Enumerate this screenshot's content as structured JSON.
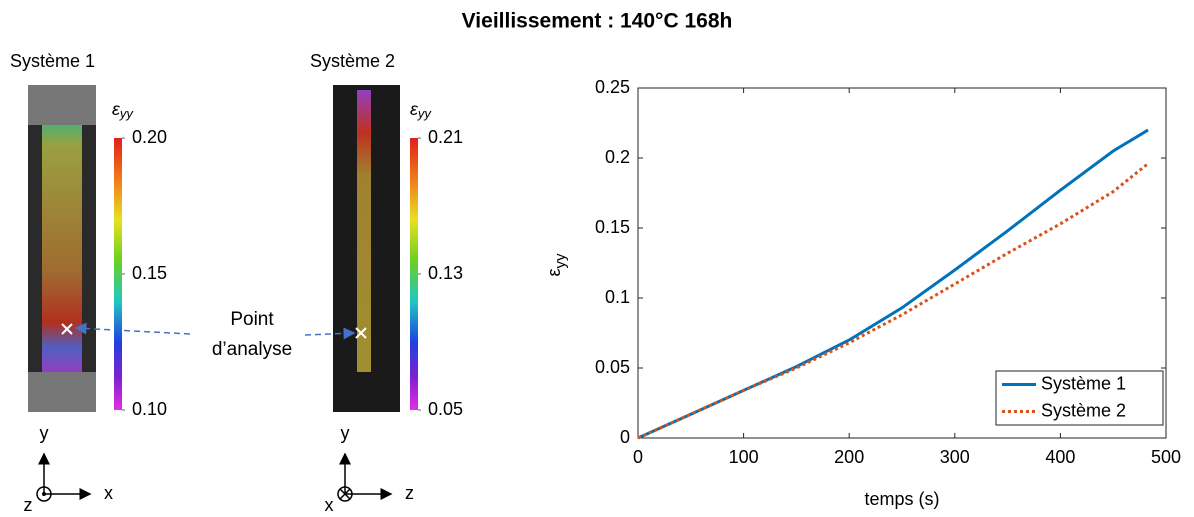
{
  "title": "Vieillissement : 140°C 168h",
  "maps": [
    {
      "label": "Système 1",
      "colorbar_label": {
        "symbol": "ε",
        "subscript": "yy"
      },
      "clim": [
        0.1,
        0.2
      ],
      "colorbar_ticks": [
        {
          "value": 0.2,
          "label": "0.20"
        },
        0.15,
        {
          "value": 0.1,
          "label": "0.10"
        }
      ],
      "axes": {
        "vertical": "y",
        "horizontal": "x",
        "normal": "z"
      }
    },
    {
      "label": "Système 2",
      "colorbar_label": {
        "symbol": "ε",
        "subscript": "yy"
      },
      "clim": [
        0.05,
        0.21
      ],
      "colorbar_ticks": [
        0.21,
        0.13,
        0.05
      ],
      "axes": {
        "vertical": "y",
        "horizontal": "z",
        "normal": "x"
      }
    }
  ],
  "annotation": [
    "Point",
    "d’analyse"
  ],
  "chart_data": {
    "type": "line",
    "xlabel": "temps (s)",
    "ylabel": {
      "symbol": "ε",
      "subscript": "yy"
    },
    "x": [
      0,
      50,
      100,
      150,
      200,
      250,
      300,
      350,
      400,
      450,
      483
    ],
    "series": [
      {
        "name": "Système 1",
        "color": "#0072bd",
        "dash": "solid",
        "values": [
          0,
          0.017,
          0.034,
          0.051,
          0.07,
          0.093,
          0.12,
          0.148,
          0.177,
          0.205,
          0.22
        ]
      },
      {
        "name": "Système 2",
        "color": "#d95319",
        "dash": "dotted",
        "values": [
          0,
          0.017,
          0.034,
          0.05,
          0.068,
          0.088,
          0.11,
          0.132,
          0.153,
          0.176,
          0.196
        ]
      }
    ],
    "xlim": [
      0,
      500
    ],
    "xticks": [
      0,
      100,
      200,
      300,
      400,
      500
    ],
    "ylim": [
      0,
      0.25
    ],
    "yticks": [
      0,
      0.05,
      0.1,
      0.15,
      0.2,
      0.25
    ],
    "legend": "lower right"
  }
}
